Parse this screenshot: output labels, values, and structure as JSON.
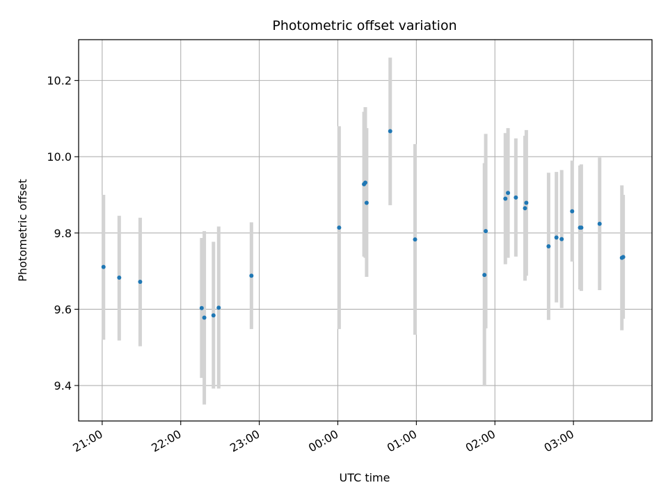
{
  "chart_data": {
    "type": "scatter",
    "title": "Photometric offset variation",
    "xlabel": "UTC time",
    "ylabel": "Photometric offset",
    "x_tick_labels": [
      "21:00",
      "22:00",
      "23:00",
      "00:00",
      "01:00",
      "02:00",
      "03:00"
    ],
    "y_ticks": [
      9.4,
      9.6,
      9.8,
      10.0,
      10.2
    ],
    "y_tick_labels": [
      "9.4",
      "9.6",
      "9.8",
      "10.0",
      "10.2"
    ],
    "xlim": [
      "20:42",
      "04:00"
    ],
    "ylim": [
      9.307,
      10.307
    ],
    "grid": true,
    "colors": {
      "point": "#1f77b4",
      "errorbar": "#d3d3d3",
      "grid": "#b0b0b0"
    },
    "points": [
      {
        "x": "21:01",
        "y": 9.711,
        "low": 9.52,
        "high": 9.9
      },
      {
        "x": "21:13",
        "y": 9.683,
        "low": 9.518,
        "high": 9.845
      },
      {
        "x": "21:29",
        "y": 9.672,
        "low": 9.503,
        "high": 9.84
      },
      {
        "x": "22:16",
        "y": 9.603,
        "low": 9.42,
        "high": 9.787
      },
      {
        "x": "22:18",
        "y": 9.578,
        "low": 9.35,
        "high": 9.805
      },
      {
        "x": "22:25",
        "y": 9.584,
        "low": 9.392,
        "high": 9.777
      },
      {
        "x": "22:29",
        "y": 9.604,
        "low": 9.392,
        "high": 9.817
      },
      {
        "x": "22:54",
        "y": 9.688,
        "low": 9.548,
        "high": 9.828
      },
      {
        "x": "00:01",
        "y": 9.814,
        "low": 9.548,
        "high": 10.08
      },
      {
        "x": "00:20",
        "y": 9.928,
        "low": 9.738,
        "high": 10.118
      },
      {
        "x": "00:21",
        "y": 9.932,
        "low": 9.735,
        "high": 10.13
      },
      {
        "x": "00:22",
        "y": 9.879,
        "low": 9.685,
        "high": 10.075
      },
      {
        "x": "00:40",
        "y": 10.067,
        "low": 9.873,
        "high": 10.26
      },
      {
        "x": "00:59",
        "y": 9.783,
        "low": 9.533,
        "high": 10.033
      },
      {
        "x": "01:52",
        "y": 9.69,
        "low": 9.398,
        "high": 9.983
      },
      {
        "x": "01:53",
        "y": 9.805,
        "low": 9.55,
        "high": 10.06
      },
      {
        "x": "02:08",
        "y": 9.89,
        "low": 9.718,
        "high": 10.062
      },
      {
        "x": "02:10",
        "y": 9.905,
        "low": 9.735,
        "high": 10.075
      },
      {
        "x": "02:16",
        "y": 9.893,
        "low": 9.738,
        "high": 10.048
      },
      {
        "x": "02:23",
        "y": 9.865,
        "low": 9.675,
        "high": 10.055
      },
      {
        "x": "02:24",
        "y": 9.879,
        "low": 9.688,
        "high": 10.07
      },
      {
        "x": "02:41",
        "y": 9.765,
        "low": 9.572,
        "high": 9.958
      },
      {
        "x": "02:47",
        "y": 9.788,
        "low": 9.618,
        "high": 9.96
      },
      {
        "x": "02:51",
        "y": 9.784,
        "low": 9.603,
        "high": 9.965
      },
      {
        "x": "02:59",
        "y": 9.857,
        "low": 9.725,
        "high": 9.99
      },
      {
        "x": "03:05",
        "y": 9.814,
        "low": 9.652,
        "high": 9.977
      },
      {
        "x": "03:06",
        "y": 9.814,
        "low": 9.648,
        "high": 9.98
      },
      {
        "x": "03:20",
        "y": 9.824,
        "low": 9.65,
        "high": 9.998
      },
      {
        "x": "03:37",
        "y": 9.735,
        "low": 9.545,
        "high": 9.925
      },
      {
        "x": "03:38",
        "y": 9.737,
        "low": 9.575,
        "high": 9.9
      }
    ]
  }
}
